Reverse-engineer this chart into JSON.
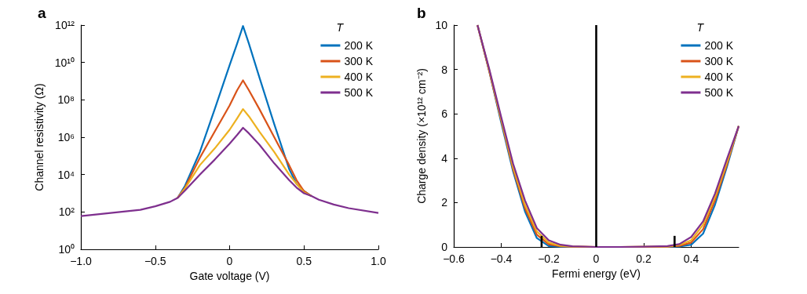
{
  "chart_data": [
    {
      "type": "line",
      "title": "a",
      "xlabel": "Gate voltage (V)",
      "ylabel": "Channel resistivity (Ω)",
      "legend_title": "T",
      "legend": "top right",
      "grid": false,
      "marker": "none",
      "line_style": "solid",
      "log": "y",
      "x": [
        -1,
        -0.8,
        -0.6,
        -0.5,
        -0.4,
        -0.35,
        -0.3,
        -0.2,
        -0.1,
        0,
        0.05,
        0.09,
        0.13,
        0.2,
        0.3,
        0.4,
        0.45,
        0.5,
        0.55,
        0.6,
        0.7,
        0.8,
        1.0
      ],
      "xlim": [
        -1,
        1
      ],
      "xticks": [
        {
          "value": -1,
          "label": "−1.0"
        },
        {
          "value": -0.5,
          "label": "−0.5"
        },
        0,
        0.5,
        {
          "value": 1,
          "label": "1.0"
        }
      ],
      "ylim": [
        1,
        1000000000000.0
      ],
      "yticks": [
        {
          "value": 1,
          "label": "10⁰"
        },
        {
          "value": 100,
          "label": "10²"
        },
        {
          "value": 10000,
          "label": "10⁴"
        },
        {
          "value": 1000000,
          "label": "10⁶"
        },
        {
          "value": 100000000,
          "label": "10⁸"
        },
        {
          "value": 10000000000,
          "label": "10¹⁰"
        },
        {
          "value": 1000000000000,
          "label": "10¹²"
        }
      ],
      "series": [
        {
          "name": "200 K",
          "color": "#0072bd",
          "values": [
            null,
            null,
            null,
            null,
            null,
            560,
            2500,
            160000,
            32000000,
            7100000000,
            100000000000,
            890000000000,
            100000000000,
            1600000000,
            5000000,
            20000,
            3200,
            1300,
            710,
            null,
            null,
            null,
            null
          ]
        },
        {
          "name": "300 K",
          "color": "#d95319",
          "values": [
            null,
            null,
            null,
            null,
            null,
            560,
            2000,
            79000,
            2000000,
            50000000,
            320000000,
            1100000000,
            320000000,
            32000000,
            1000000,
            32000,
            5000,
            1300,
            710,
            null,
            null,
            null,
            null
          ]
        },
        {
          "name": "400 K",
          "color": "#edb120",
          "values": [
            null,
            null,
            null,
            null,
            null,
            560,
            1800,
            32000,
            250000,
            2500000,
            10000000,
            32000000,
            13000000,
            2000000,
            160000,
            10000,
            3200,
            1100,
            710,
            null,
            null,
            null,
            null
          ]
        },
        {
          "name": "500 K",
          "color": "#7e2f8e",
          "values": [
            60,
            89,
            130,
            200,
            350,
            560,
            1400,
            10000,
            63000,
            450000,
            1300000,
            3200000,
            1600000,
            400000,
            40000,
            5000,
            2000,
            1000,
            710,
            450,
            250,
            160,
            89
          ]
        }
      ]
    },
    {
      "type": "line",
      "title": "b",
      "xlabel": "Fermi energy (eV)",
      "ylabel": "Charge density (×10¹² cm⁻²)",
      "ref_lines": [
        {
          "axis": "x",
          "value": 0,
          "color": "#000000"
        }
      ],
      "legend_title": "T",
      "legend": "top right",
      "grid": false,
      "marker": "none",
      "line_style": "solid",
      "x": [
        -0.5,
        -0.45,
        -0.4,
        -0.35,
        -0.3,
        -0.25,
        -0.2,
        -0.15,
        -0.1,
        0,
        0.1,
        0.2,
        0.3,
        0.35,
        0.4,
        0.45,
        0.5,
        0.55,
        0.6
      ],
      "xlim": [
        -0.6,
        0.6
      ],
      "xticks": [
        {
          "value": -0.6,
          "label": "−0.6"
        },
        {
          "value": -0.4,
          "label": "−0.4"
        },
        {
          "value": -0.2,
          "label": "−0.2"
        },
        0,
        0.2,
        0.4
      ],
      "ylim": [
        0,
        10
      ],
      "yticks": [
        0,
        2,
        4,
        6,
        8,
        10
      ],
      "series": [
        {
          "name": "200 K",
          "color": "#0072bd",
          "values": [
            10,
            7.9,
            5.6,
            3.4,
            1.6,
            0.4,
            0.04,
            0.01,
            0,
            0,
            0,
            0,
            0,
            0.02,
            0.1,
            0.6,
            1.9,
            3.6,
            5.45
          ]
        },
        {
          "name": "300 K",
          "color": "#d95319",
          "values": [
            10,
            7.9,
            5.7,
            3.5,
            1.75,
            0.55,
            0.12,
            0.03,
            0.01,
            0,
            0,
            0,
            0.01,
            0.05,
            0.2,
            0.8,
            2.1,
            3.7,
            5.45
          ]
        },
        {
          "name": "400 K",
          "color": "#edb120",
          "values": [
            10,
            7.95,
            5.75,
            3.6,
            1.9,
            0.7,
            0.2,
            0.05,
            0.02,
            0,
            0,
            0.01,
            0.02,
            0.09,
            0.3,
            1.0,
            2.25,
            3.8,
            5.45
          ]
        },
        {
          "name": "500 K",
          "color": "#7e2f8e",
          "values": [
            10,
            8.0,
            5.85,
            3.75,
            2.1,
            0.85,
            0.3,
            0.1,
            0.03,
            0,
            0,
            0.01,
            0.04,
            0.13,
            0.45,
            1.15,
            2.4,
            3.95,
            5.45
          ]
        },
        {
          "type": "bar",
          "color": "#000000",
          "x": [
            -0.23,
            0.33
          ],
          "values": [
            0.5,
            0.5
          ]
        }
      ]
    }
  ]
}
